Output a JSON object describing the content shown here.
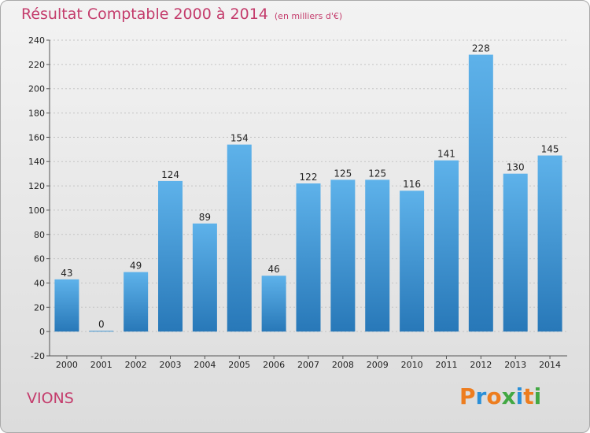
{
  "header": {
    "title": "Résultat Comptable 2000 à 2014",
    "subtitle": "(en milliers d'€)"
  },
  "footer": {
    "commune": "VIONS",
    "logo": "Proxiti"
  },
  "colors": {
    "title": "#c43c6c",
    "bar_top": "#5eb2ea",
    "bar_bottom": "#2878b8",
    "logo": [
      "#ed7d1f",
      "#2a8fd8",
      "#ed7d1f",
      "#42a843",
      "#2a8fd8",
      "#ed7d1f",
      "#42a843"
    ]
  },
  "chart_data": {
    "type": "bar",
    "categories": [
      "2000",
      "2001",
      "2002",
      "2003",
      "2004",
      "2005",
      "2006",
      "2007",
      "2008",
      "2009",
      "2010",
      "2011",
      "2012",
      "2013",
      "2014"
    ],
    "values": [
      43,
      0,
      49,
      124,
      89,
      154,
      46,
      122,
      125,
      125,
      116,
      141,
      228,
      130,
      145
    ],
    "title": "Résultat Comptable 2000 à 2014",
    "subtitle": "(en milliers d'€)",
    "xlabel": "",
    "ylabel": "",
    "ylim": [
      -20,
      240
    ],
    "yticks": [
      -20,
      0,
      20,
      40,
      60,
      80,
      100,
      120,
      140,
      160,
      180,
      200,
      220,
      240
    ],
    "grid": true
  }
}
